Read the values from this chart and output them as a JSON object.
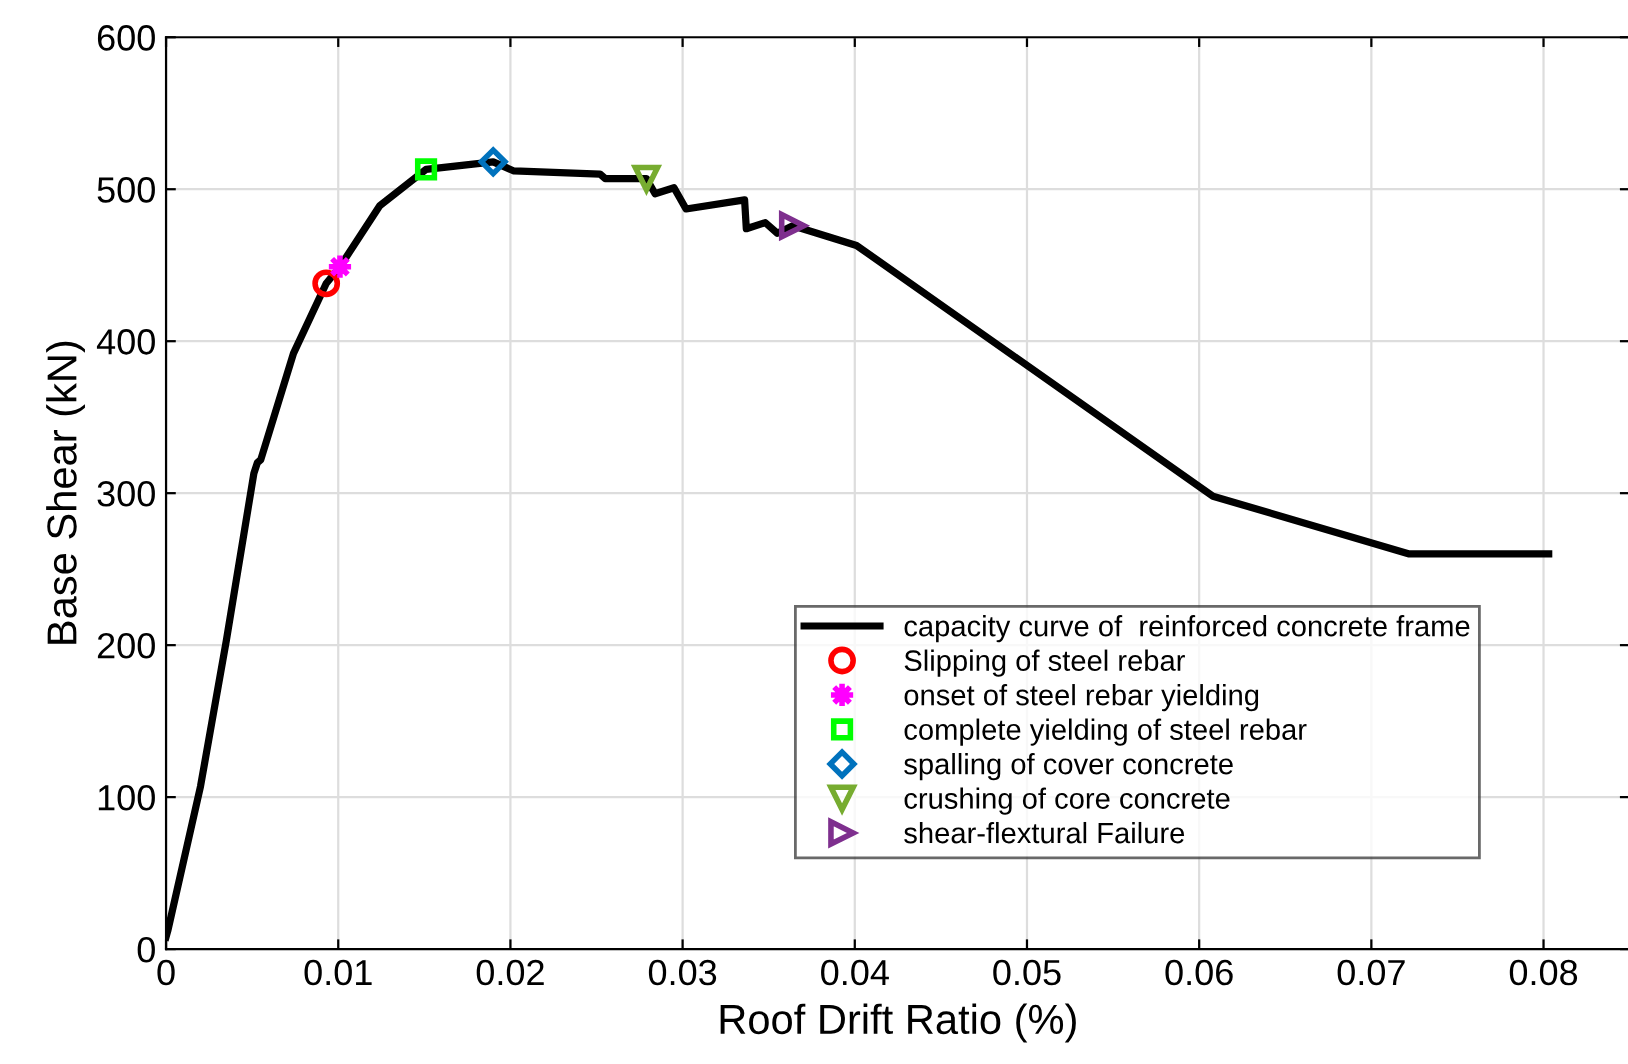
{
  "chart_data": {
    "type": "line",
    "xlabel": "Roof Drift Ratio (%)",
    "ylabel": "Base Shear (kN)",
    "xlim": [
      0,
      0.085
    ],
    "xticks": [
      0,
      0.01,
      0.02,
      0.03,
      0.04,
      0.05,
      0.06,
      0.07,
      0.08
    ],
    "ylim": [
      0,
      600
    ],
    "yticks": [
      0,
      100,
      200,
      300,
      400,
      500,
      600
    ],
    "grid": true,
    "legend": "bottom right",
    "series": [
      {
        "name": "capacity curve of  reinforced concrete frame",
        "color": "#000000",
        "marker": "none",
        "line_style": "solid",
        "x": [
          0,
          0.0001,
          0.002,
          0.0035,
          0.0051,
          0.0053,
          0.0055,
          0.0074,
          0.0093,
          0.0101,
          0.0124,
          0.0151,
          0.019,
          0.0202,
          0.0252,
          0.0255,
          0.0279,
          0.0284,
          0.0295,
          0.0302,
          0.0336,
          0.0337,
          0.0348,
          0.0355,
          0.0364,
          0.0401,
          0.0608,
          0.0722,
          0.0803
        ],
        "values": [
          8,
          12,
          107,
          203,
          313,
          320,
          322,
          392,
          438,
          449,
          489,
          513,
          518,
          512,
          510,
          507,
          507,
          497,
          501,
          487,
          493,
          474,
          478,
          471,
          476,
          463,
          298,
          260,
          260
        ]
      },
      {
        "name": "Slipping of steel rebar",
        "type": "scatter",
        "color": "#ff0000",
        "marker": "circle",
        "x": [
          0.0093
        ],
        "values": [
          438
        ]
      },
      {
        "name": "onset of steel rebar yielding",
        "type": "scatter",
        "color": "#ff00ff",
        "marker": "star",
        "x": [
          0.0101
        ],
        "values": [
          449
        ]
      },
      {
        "name": "complete yielding of steel rebar",
        "type": "scatter",
        "color": "#00ff00",
        "marker": "square",
        "x": [
          0.0151
        ],
        "values": [
          513
        ]
      },
      {
        "name": "spalling of cover concrete",
        "type": "scatter",
        "color": "#0072bd",
        "marker": "diamond",
        "x": [
          0.019
        ],
        "values": [
          518
        ]
      },
      {
        "name": "crushing of core concrete",
        "type": "scatter",
        "color": "#77ac30",
        "marker": "triangle_down",
        "x": [
          0.0279
        ],
        "values": [
          507
        ]
      },
      {
        "name": "shear-flextural Failure",
        "type": "scatter",
        "color": "#7e2f8e",
        "marker": "triangle_right",
        "x": [
          0.0364
        ],
        "values": [
          476
        ]
      }
    ]
  }
}
